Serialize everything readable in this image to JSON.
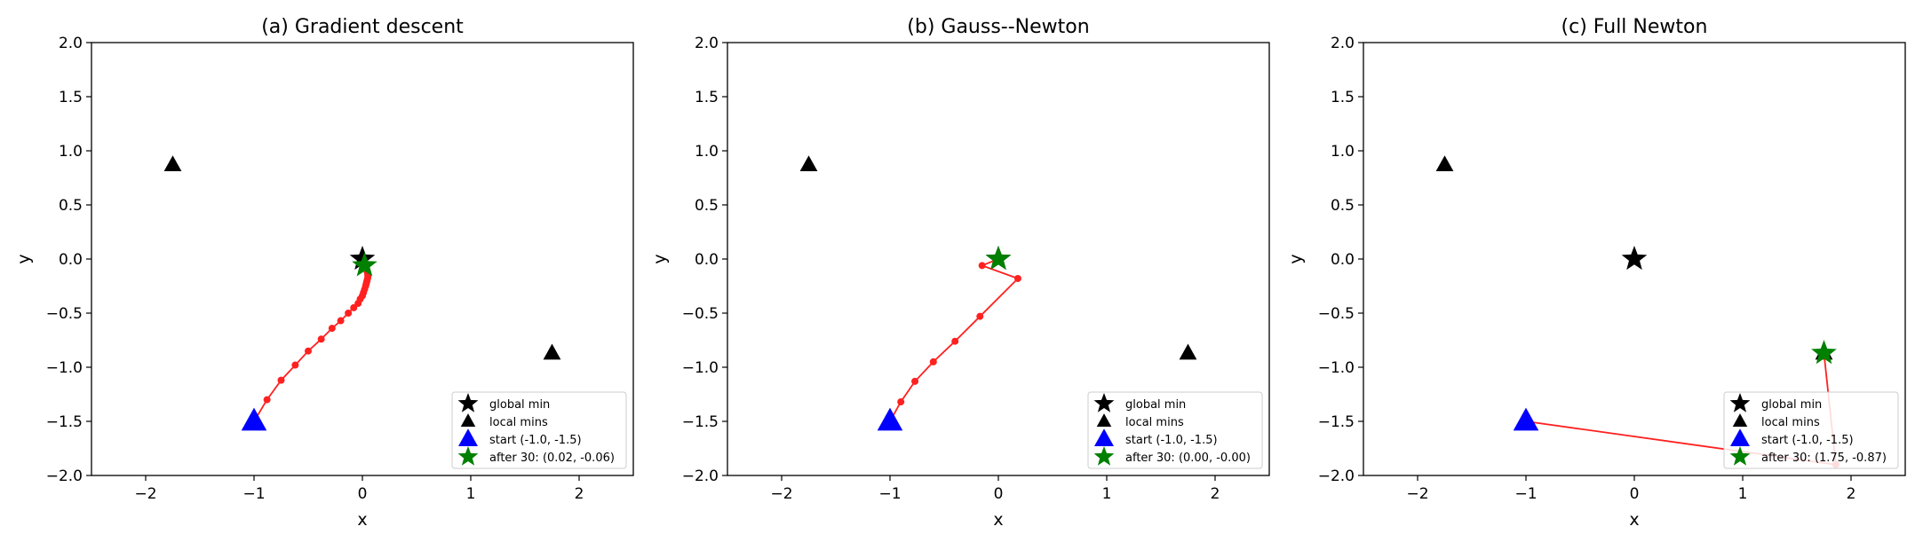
{
  "chart_data": [
    {
      "type": "scatter",
      "title": "(a) Gradient descent",
      "xlabel": "x",
      "ylabel": "y",
      "xlim": [
        -2.5,
        2.5
      ],
      "ylim": [
        -2.0,
        2.0
      ],
      "xticks": [
        -2,
        -1,
        0,
        1,
        2
      ],
      "yticks": [
        -2.0,
        -1.5,
        -1.0,
        -0.5,
        0.0,
        0.5,
        1.0,
        1.5,
        2.0
      ],
      "xtick_labels": [
        "−2",
        "−1",
        "0",
        "1",
        "2"
      ],
      "ytick_labels": [
        "−2.0",
        "−1.5",
        "−1.0",
        "−0.5",
        "0.0",
        "0.5",
        "1.0",
        "1.5",
        "2.0"
      ],
      "global_min": {
        "x": 0.0,
        "y": 0.0
      },
      "local_mins": [
        {
          "x": -1.75,
          "y": 0.87
        },
        {
          "x": 1.75,
          "y": -0.87
        }
      ],
      "start": {
        "x": -1.0,
        "y": -1.5
      },
      "final": {
        "x": 0.02,
        "y": -0.06
      },
      "path": {
        "x": [
          -1.0,
          -0.88,
          -0.75,
          -0.62,
          -0.5,
          -0.38,
          -0.28,
          -0.2,
          -0.13,
          -0.08,
          -0.04,
          -0.02,
          0.0,
          0.01,
          0.02,
          0.03,
          0.035,
          0.04,
          0.045,
          0.05,
          0.05,
          0.05,
          0.045,
          0.04,
          0.035,
          0.03,
          0.025,
          0.02
        ],
        "y": [
          -1.5,
          -1.3,
          -1.12,
          -0.98,
          -0.85,
          -0.74,
          -0.64,
          -0.57,
          -0.5,
          -0.45,
          -0.41,
          -0.37,
          -0.34,
          -0.31,
          -0.28,
          -0.25,
          -0.23,
          -0.21,
          -0.19,
          -0.17,
          -0.15,
          -0.13,
          -0.12,
          -0.1,
          -0.09,
          -0.08,
          -0.07,
          -0.06
        ]
      },
      "legend": {
        "position": "lower right",
        "entries": [
          "global min",
          "local mins",
          "start (-1.0, -1.5)",
          "after 30: (0.02, -0.06)"
        ]
      },
      "colors": {
        "path": "#ff2020",
        "start": "#0000ff",
        "final": "#008000",
        "min": "#000000"
      }
    },
    {
      "type": "scatter",
      "title": "(b) Gauss--Newton",
      "xlabel": "x",
      "ylabel": "y",
      "xlim": [
        -2.5,
        2.5
      ],
      "ylim": [
        -2.0,
        2.0
      ],
      "xticks": [
        -2,
        -1,
        0,
        1,
        2
      ],
      "yticks": [
        -2.0,
        -1.5,
        -1.0,
        -0.5,
        0.0,
        0.5,
        1.0,
        1.5,
        2.0
      ],
      "xtick_labels": [
        "−2",
        "−1",
        "0",
        "1",
        "2"
      ],
      "ytick_labels": [
        "−2.0",
        "−1.5",
        "−1.0",
        "−0.5",
        "0.0",
        "0.5",
        "1.0",
        "1.5",
        "2.0"
      ],
      "global_min": {
        "x": 0.0,
        "y": 0.0
      },
      "local_mins": [
        {
          "x": -1.75,
          "y": 0.87
        },
        {
          "x": 1.75,
          "y": -0.87
        }
      ],
      "start": {
        "x": -1.0,
        "y": -1.5
      },
      "final": {
        "x": 0.0,
        "y": -0.0
      },
      "path": {
        "x": [
          -1.0,
          -0.9,
          -0.77,
          -0.6,
          -0.4,
          -0.17,
          0.18,
          -0.15,
          0.0
        ],
        "y": [
          -1.5,
          -1.32,
          -1.13,
          -0.95,
          -0.76,
          -0.53,
          -0.18,
          -0.06,
          0.0
        ]
      },
      "legend": {
        "position": "lower right",
        "entries": [
          "global min",
          "local mins",
          "start (-1.0, -1.5)",
          "after 30: (0.00, -0.00)"
        ]
      },
      "colors": {
        "path": "#ff2020",
        "start": "#0000ff",
        "final": "#008000",
        "min": "#000000"
      }
    },
    {
      "type": "scatter",
      "title": "(c) Full Newton",
      "xlabel": "x",
      "ylabel": "y",
      "xlim": [
        -2.5,
        2.5
      ],
      "ylim": [
        -2.0,
        2.0
      ],
      "xticks": [
        -2,
        -1,
        0,
        1,
        2
      ],
      "yticks": [
        -2.0,
        -1.5,
        -1.0,
        -0.5,
        0.0,
        0.5,
        1.0,
        1.5,
        2.0
      ],
      "xtick_labels": [
        "−2",
        "−1",
        "0",
        "1",
        "2"
      ],
      "ytick_labels": [
        "−2.0",
        "−1.5",
        "−1.0",
        "−0.5",
        "0.0",
        "0.5",
        "1.0",
        "1.5",
        "2.0"
      ],
      "global_min": {
        "x": 0.0,
        "y": 0.0
      },
      "local_mins": [
        {
          "x": -1.75,
          "y": 0.87
        },
        {
          "x": 1.75,
          "y": -0.87
        }
      ],
      "start": {
        "x": -1.0,
        "y": -1.5
      },
      "final": {
        "x": 1.75,
        "y": -0.87
      },
      "path": {
        "x": [
          -1.0,
          1.86,
          1.75
        ],
        "y": [
          -1.5,
          -1.9,
          -0.87
        ]
      },
      "legend": {
        "position": "lower right",
        "entries": [
          "global min",
          "local mins",
          "start (-1.0, -1.5)",
          "after 30: (1.75, -0.87)"
        ]
      },
      "colors": {
        "path": "#ff2020",
        "start": "#0000ff",
        "final": "#008000",
        "min": "#000000"
      }
    }
  ]
}
